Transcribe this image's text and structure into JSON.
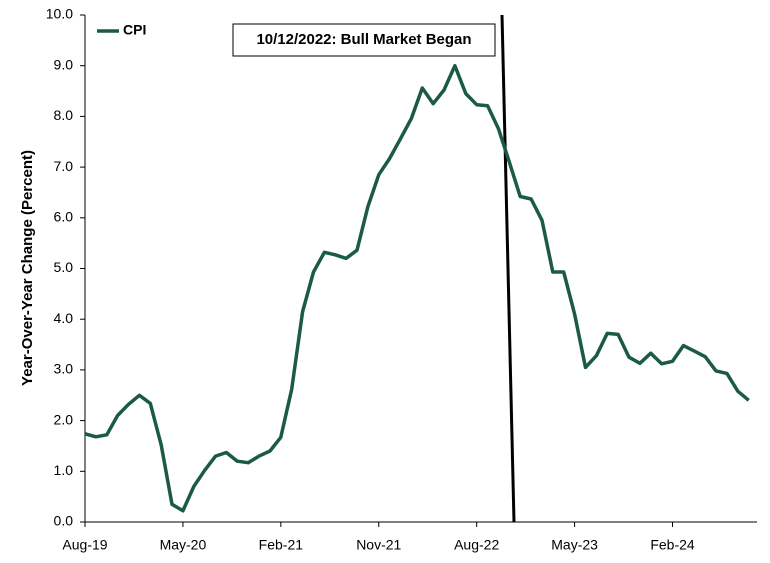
{
  "chart_data": {
    "type": "line",
    "y_axis_label": "Year-Over-Year Change (Percent)",
    "annotation": "10/12/2022: Bull Market Began",
    "categories": [
      "Aug-19",
      null,
      null,
      null,
      null,
      null,
      null,
      null,
      null,
      "May-20",
      null,
      null,
      null,
      null,
      null,
      null,
      null,
      null,
      "Feb-21",
      null,
      null,
      null,
      null,
      null,
      null,
      null,
      null,
      "Nov-21",
      null,
      null,
      null,
      null,
      null,
      null,
      null,
      null,
      "Aug-22",
      null,
      null,
      null,
      null,
      null,
      null,
      null,
      null,
      "May-23",
      null,
      null,
      null,
      null,
      null,
      null,
      null,
      null,
      "Feb-24",
      null,
      null,
      null,
      null,
      null,
      null,
      null
    ],
    "series": [
      {
        "name": "CPI",
        "color": "#1b5a45",
        "values": [
          1.74,
          1.68,
          1.72,
          2.1,
          2.32,
          2.5,
          2.34,
          1.52,
          0.35,
          0.22,
          0.7,
          1.02,
          1.3,
          1.37,
          1.2,
          1.17,
          1.3,
          1.4,
          1.67,
          2.62,
          4.15,
          4.93,
          5.32,
          5.27,
          5.2,
          5.36,
          6.22,
          6.85,
          7.17,
          7.56,
          7.96,
          8.56,
          8.25,
          8.52,
          9.0,
          8.45,
          8.23,
          8.21,
          7.76,
          7.1,
          6.42,
          6.37,
          5.95,
          4.93,
          4.93,
          4.1,
          3.05,
          3.28,
          3.72,
          3.7,
          3.25,
          3.13,
          3.33,
          3.12,
          3.17,
          3.48,
          3.37,
          3.26,
          2.98,
          2.93,
          2.58,
          2.4
        ]
      }
    ],
    "ylim": [
      0,
      10
    ],
    "yticks": [
      {
        "value": 0,
        "label": "0.0"
      },
      {
        "value": 1,
        "label": "1.0"
      },
      {
        "value": 2,
        "label": "2.0"
      },
      {
        "value": 3,
        "label": "3.0"
      },
      {
        "value": 4,
        "label": "4.0"
      },
      {
        "value": 5,
        "label": "5.0"
      },
      {
        "value": 6,
        "label": "6.0"
      },
      {
        "value": 7,
        "label": "7.0"
      },
      {
        "value": 8,
        "label": "8.0"
      },
      {
        "value": 9,
        "label": "9.0"
      },
      {
        "value": 10,
        "label": "10.0"
      }
    ],
    "legend": "upper left"
  }
}
